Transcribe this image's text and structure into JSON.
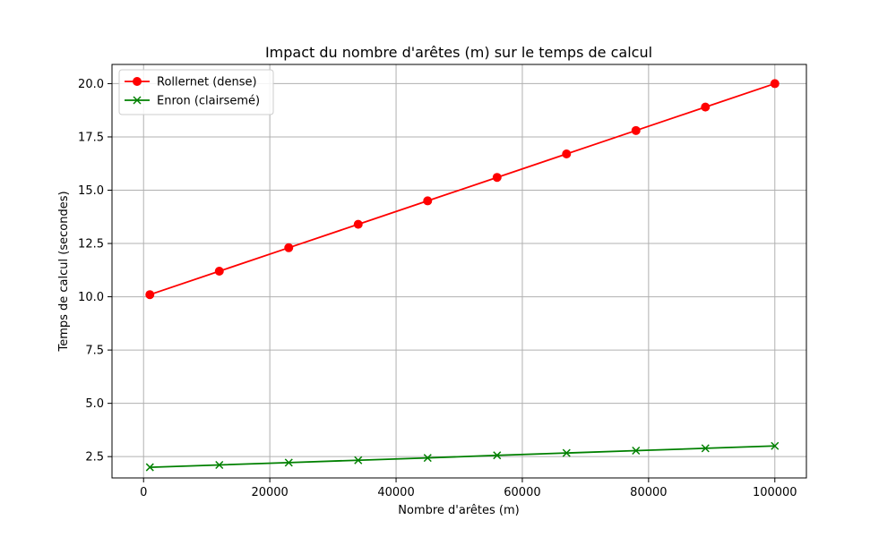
{
  "chart_data": {
    "type": "line",
    "title": "Impact du nombre d'arêtes (m) sur le temps de calcul",
    "xlabel": "Nombre d'arêtes (m)",
    "ylabel": "Temps de calcul (secondes)",
    "x": [
      1000,
      12000,
      23000,
      34000,
      45000,
      56000,
      67000,
      78000,
      89000,
      100000
    ],
    "xlim": [
      -5000,
      105000
    ],
    "ylim": [
      1.5,
      20.9
    ],
    "xticks": [
      0,
      20000,
      40000,
      60000,
      80000,
      100000
    ],
    "xtick_labels": [
      "0",
      "20000",
      "40000",
      "60000",
      "80000",
      "100000"
    ],
    "yticks": [
      2.5,
      5.0,
      7.5,
      10.0,
      12.5,
      15.0,
      17.5,
      20.0
    ],
    "ytick_labels": [
      "2.5",
      "5.0",
      "7.5",
      "10.0",
      "12.5",
      "15.0",
      "17.5",
      "20.0"
    ],
    "grid": true,
    "legend_position": "top-left",
    "series": [
      {
        "name": "Rollernet (dense)",
        "color": "#ff0000",
        "marker": "circle",
        "values": [
          10.1,
          11.2,
          12.3,
          13.4,
          14.5,
          15.6,
          16.7,
          17.8,
          18.9,
          20.0
        ]
      },
      {
        "name": "Enron (clairsemé)",
        "color": "#008000",
        "marker": "x",
        "values": [
          2.0,
          2.11,
          2.22,
          2.33,
          2.44,
          2.56,
          2.67,
          2.78,
          2.89,
          3.0
        ]
      }
    ]
  }
}
